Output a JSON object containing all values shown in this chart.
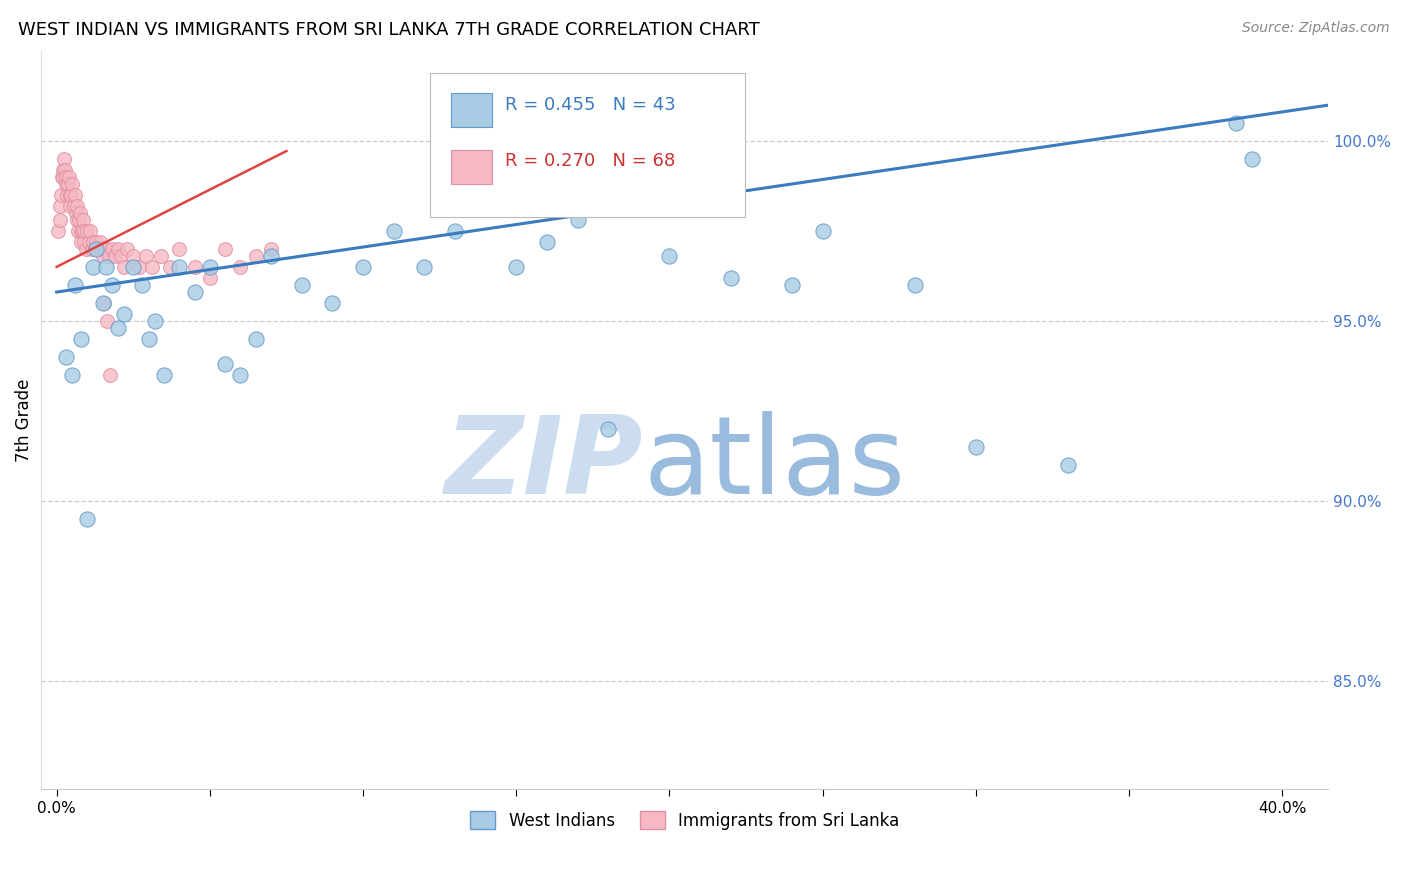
{
  "title": "WEST INDIAN VS IMMIGRANTS FROM SRI LANKA 7TH GRADE CORRELATION CHART",
  "source": "Source: ZipAtlas.com",
  "ylabel": "7th Grade",
  "xlabel_vals": [
    0.0,
    5.0,
    10.0,
    15.0,
    20.0,
    25.0,
    30.0,
    35.0,
    40.0
  ],
  "xlabel_ticks": [
    "0.0%",
    "",
    "",
    "",
    "",
    "",
    "",
    "",
    "40.0%"
  ],
  "ylim": [
    82.0,
    102.5
  ],
  "xlim": [
    -0.5,
    41.5
  ],
  "ytick_vals": [
    85.0,
    90.0,
    95.0,
    100.0
  ],
  "ytick_labels": [
    "85.0%",
    "90.0%",
    "95.0%",
    "100.0%"
  ],
  "legend_blue_label": "West Indians",
  "legend_pink_label": "Immigrants from Sri Lanka",
  "R_blue": "R = 0.455",
  "N_blue": "N = 43",
  "R_pink": "R = 0.270",
  "N_pink": "N = 68",
  "blue_scatter_color": "#a8cce4",
  "pink_scatter_color": "#f5b8c4",
  "blue_line_color": "#3b7bbf",
  "pink_line_color": "#d44",
  "blue_text_color": "#3b7bbf",
  "pink_text_color": "#cc3333",
  "grid_color": "#cccccc",
  "background_color": "#ffffff",
  "watermark_zip_color": "#ccddef",
  "watermark_atlas_color": "#99bbdd",
  "west_indian_x": [
    0.3,
    0.5,
    0.6,
    0.8,
    1.0,
    1.2,
    1.3,
    1.5,
    1.6,
    1.8,
    2.0,
    2.2,
    2.5,
    2.8,
    3.0,
    3.2,
    3.5,
    4.0,
    4.5,
    5.0,
    5.5,
    6.0,
    6.5,
    7.0,
    8.0,
    9.0,
    10.0,
    11.0,
    12.0,
    13.0,
    15.0,
    16.0,
    17.0,
    18.0,
    20.0,
    22.0,
    24.0,
    25.0,
    28.0,
    30.0,
    33.0,
    38.5,
    39.0
  ],
  "west_indian_y": [
    94.0,
    93.5,
    96.0,
    94.5,
    89.5,
    96.5,
    97.0,
    95.5,
    96.5,
    96.0,
    94.8,
    95.2,
    96.5,
    96.0,
    94.5,
    95.0,
    93.5,
    96.5,
    95.8,
    96.5,
    93.8,
    93.5,
    94.5,
    96.8,
    96.0,
    95.5,
    96.5,
    97.5,
    96.5,
    97.5,
    96.5,
    97.2,
    97.8,
    92.0,
    96.8,
    96.2,
    96.0,
    97.5,
    96.0,
    91.5,
    91.0,
    100.5,
    99.5
  ],
  "sri_lanka_x": [
    0.05,
    0.1,
    0.12,
    0.15,
    0.18,
    0.2,
    0.22,
    0.25,
    0.28,
    0.3,
    0.32,
    0.35,
    0.38,
    0.4,
    0.42,
    0.45,
    0.48,
    0.5,
    0.55,
    0.6,
    0.62,
    0.65,
    0.68,
    0.7,
    0.72,
    0.75,
    0.78,
    0.8,
    0.82,
    0.85,
    0.88,
    0.9,
    0.95,
    1.0,
    1.05,
    1.1,
    1.15,
    1.2,
    1.25,
    1.3,
    1.35,
    1.4,
    1.45,
    1.5,
    1.6,
    1.7,
    1.8,
    1.9,
    2.0,
    2.1,
    2.2,
    2.3,
    2.5,
    2.7,
    2.9,
    3.1,
    3.4,
    3.7,
    4.0,
    4.5,
    5.0,
    5.5,
    6.0,
    6.5,
    7.0,
    1.55,
    1.65,
    1.75
  ],
  "sri_lanka_y": [
    97.5,
    97.8,
    98.2,
    98.5,
    99.0,
    99.2,
    99.0,
    99.5,
    99.2,
    99.0,
    98.8,
    98.5,
    98.8,
    99.0,
    98.5,
    98.2,
    98.5,
    98.8,
    98.2,
    98.5,
    98.0,
    97.8,
    98.2,
    97.5,
    97.8,
    98.0,
    97.5,
    97.2,
    97.5,
    97.8,
    97.2,
    97.5,
    97.0,
    97.5,
    97.2,
    97.5,
    97.0,
    97.2,
    97.0,
    97.2,
    97.0,
    97.2,
    97.0,
    96.8,
    97.0,
    96.8,
    97.0,
    96.8,
    97.0,
    96.8,
    96.5,
    97.0,
    96.8,
    96.5,
    96.8,
    96.5,
    96.8,
    96.5,
    97.0,
    96.5,
    96.2,
    97.0,
    96.5,
    96.8,
    97.0,
    95.5,
    95.0,
    93.5
  ]
}
